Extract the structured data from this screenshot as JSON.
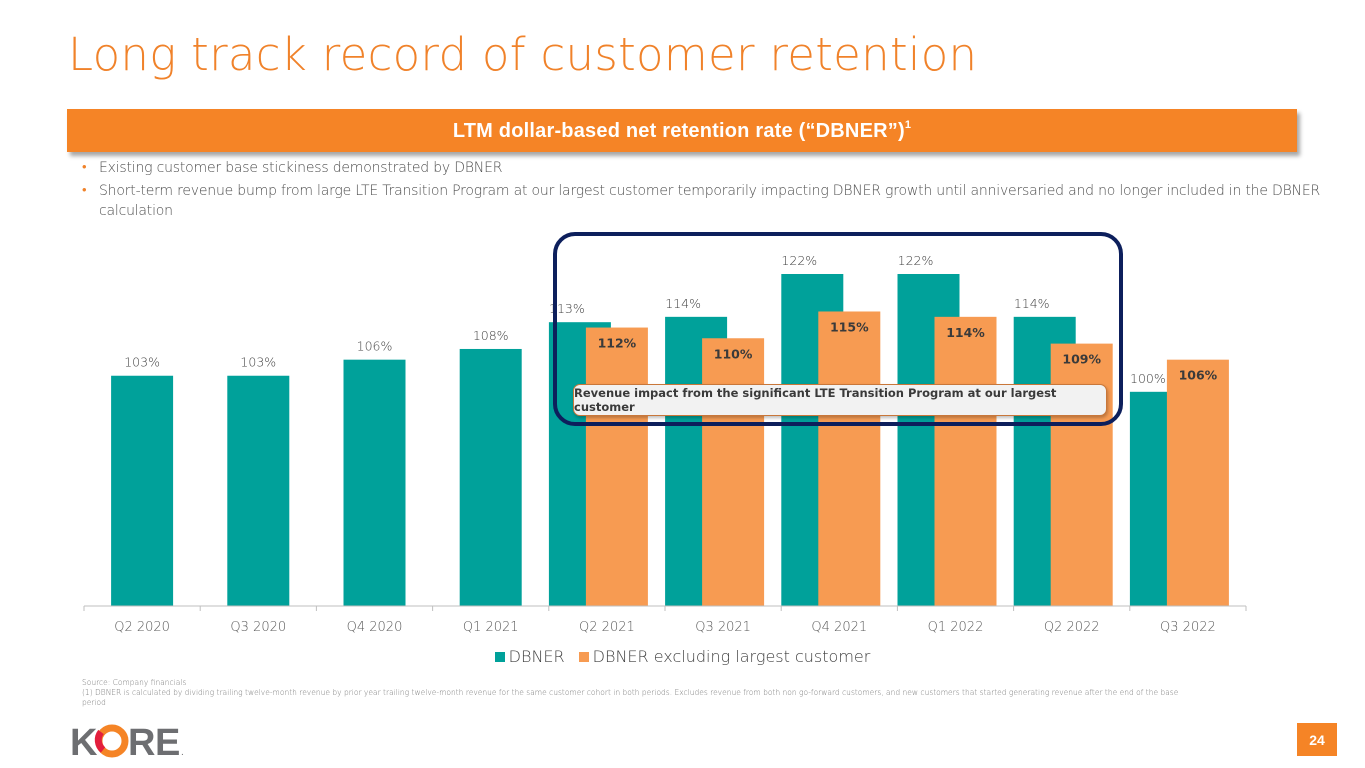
{
  "slide": {
    "title": "Long track record of customer retention",
    "banner": {
      "text": "LTM dollar-based net retention rate (“DBNER”)",
      "superscript": "1"
    },
    "bullets": [
      "Existing customer base stickiness demonstrated by DBNER",
      "Short-term revenue bump from large LTE Transition Program at our largest customer temporarily impacting DBNER growth until anniversaried and no longer included in the DBNER calculation"
    ],
    "callout": "Revenue impact from the significant LTE Transition Program at our largest customer",
    "footnotes": {
      "source": "Source: Company financials",
      "note1": "(1) DBNER is calculated by dividing trailing twelve-month revenue by prior year trailing twelve-month revenue for the same customer cohort in both periods. Excludes revenue from both non go-forward customers, and new customers that started generating revenue after the end of the base period"
    },
    "logo": {
      "text": "KORE",
      "letters": [
        "K",
        "O",
        "R",
        "E"
      ],
      "registered": "."
    },
    "page_number": "24",
    "colors": {
      "accent_orange": "#f58426",
      "title_orange": "#f0822a",
      "dbner_teal": "#00a19a",
      "dbner_ex_orange": "#f79b52",
      "frame_navy": "#0d1f5c",
      "logo_gray": "#6d6e71",
      "logo_red": "#e31e3c"
    }
  },
  "chart_data": {
    "type": "bar",
    "title": "LTM dollar-based net retention rate (“DBNER”)",
    "xlabel": "",
    "ylabel": "",
    "categories": [
      "Q2 2020",
      "Q3 2020",
      "Q4 2020",
      "Q1 2021",
      "Q2 2021",
      "Q3 2021",
      "Q4 2021",
      "Q1 2022",
      "Q2 2022",
      "Q3 2022"
    ],
    "series": [
      {
        "name": "DBNER",
        "color": "#00a19a",
        "values": [
          103,
          103,
          106,
          108,
          113,
          114,
          122,
          122,
          114,
          100
        ],
        "labels": [
          "103%",
          "103%",
          "106%",
          "108%",
          "113%",
          "114%",
          "122%",
          "122%",
          "114%",
          "100%"
        ]
      },
      {
        "name": "DBNER excluding largest customer",
        "color": "#f79b52",
        "values": [
          null,
          null,
          null,
          null,
          112,
          110,
          115,
          114,
          109,
          106
        ],
        "labels": [
          "",
          "",
          "",
          "",
          "112%",
          "110%",
          "115%",
          "114%",
          "109%",
          "106%"
        ]
      }
    ],
    "unit": "%",
    "ylim": [
      60,
      125
    ],
    "grid": false,
    "legend": "bottom-center",
    "highlight_range": [
      "Q2 2021",
      "Q2 2022"
    ]
  }
}
